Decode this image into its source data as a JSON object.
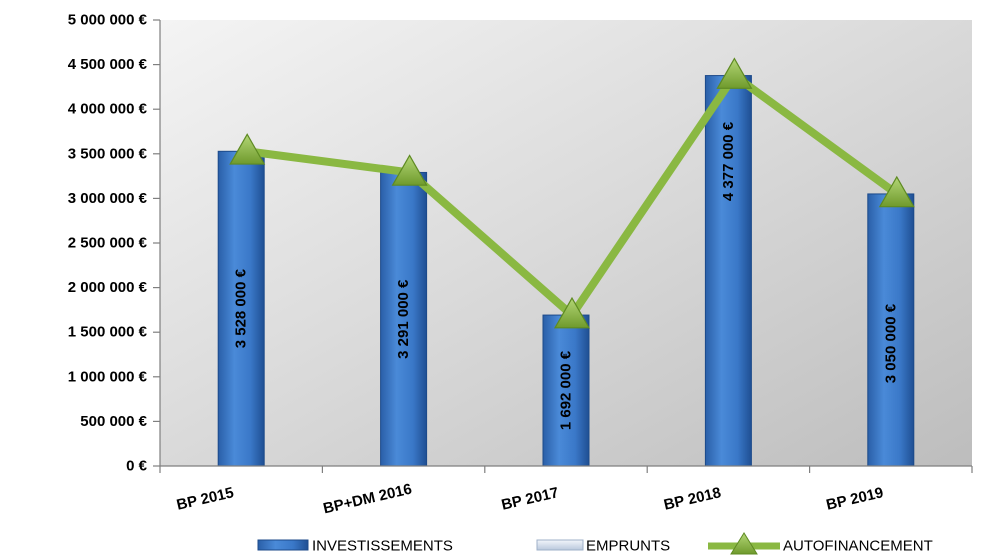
{
  "chart_data": {
    "type": "bar",
    "categories": [
      "BP 2015",
      "BP+DM 2016",
      "BP 2017",
      "BP 2018",
      "BP 2019"
    ],
    "series": [
      {
        "name": "INVESTISSEMENTS",
        "kind": "bar",
        "values": [
          3528000,
          3291000,
          1692000,
          4377000,
          3050000
        ],
        "labels": [
          "3 528 000 €",
          "3 291 000 €",
          "1 692 000 €",
          "4 377 000 €",
          "3 050 000 €"
        ],
        "color": "#3a78c8"
      },
      {
        "name": "EMPRUNTS",
        "kind": "bar",
        "values": [
          0,
          0,
          0,
          0,
          0
        ],
        "color": "#d6e0ee"
      },
      {
        "name": "AUTOFINANCEMENT",
        "kind": "line",
        "values": [
          3528000,
          3291000,
          1692000,
          4377000,
          3050000
        ],
        "color": "#8ab842"
      }
    ],
    "yticks": [
      "0 €",
      "500 000 €",
      "1 000 000 €",
      "1 500 000 €",
      "2 000 000 €",
      "2 500 000 €",
      "3 000 000 €",
      "3 500 000 €",
      "4 000 000 €",
      "4 500 000 €",
      "5 000 000 €"
    ],
    "ylim": [
      0,
      5000000
    ],
    "legend_position": "bottom",
    "grid": false,
    "plot_background": "gradient-grey"
  }
}
